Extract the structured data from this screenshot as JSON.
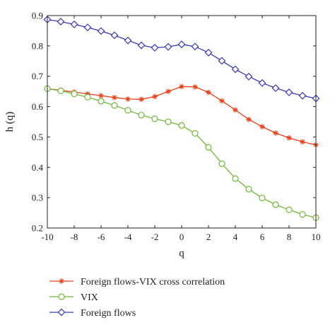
{
  "chart_data": {
    "type": "line",
    "xlabel": "q",
    "ylabel": "h (q)",
    "xlim": [
      -10,
      10
    ],
    "ylim": [
      0.2,
      0.9
    ],
    "x_ticks": [
      "-10",
      "-8",
      "-6",
      "-4",
      "-2",
      "0",
      "2",
      "4",
      "6",
      "8",
      "10"
    ],
    "y_ticks": [
      "0.2",
      "0.3",
      "0.4",
      "0.5",
      "0.6",
      "0.7",
      "0.8",
      "0.9"
    ],
    "grid": false,
    "legend_position": "below",
    "x": [
      -10,
      -9,
      -8,
      -7,
      -6,
      -5,
      -4,
      -3,
      -2,
      -1,
      0,
      1,
      2,
      3,
      4,
      5,
      6,
      7,
      8,
      9,
      10
    ],
    "series": [
      {
        "name": "Foreign flows-VIX cross correlation",
        "color": "#e8401c",
        "marker": "asterisk",
        "values": [
          0.659,
          0.654,
          0.648,
          0.642,
          0.636,
          0.63,
          0.625,
          0.624,
          0.633,
          0.65,
          0.666,
          0.665,
          0.647,
          0.619,
          0.589,
          0.558,
          0.534,
          0.513,
          0.497,
          0.484,
          0.474
        ]
      },
      {
        "name": "VIX",
        "color": "#72b83c",
        "marker": "circle",
        "values": [
          0.659,
          0.652,
          0.642,
          0.631,
          0.618,
          0.604,
          0.588,
          0.572,
          0.56,
          0.55,
          0.538,
          0.512,
          0.466,
          0.412,
          0.363,
          0.328,
          0.299,
          0.277,
          0.26,
          0.245,
          0.234
        ]
      },
      {
        "name": "Foreign flows",
        "color": "#3a3ab0",
        "marker": "diamond",
        "values": [
          0.887,
          0.88,
          0.871,
          0.861,
          0.849,
          0.835,
          0.818,
          0.802,
          0.794,
          0.797,
          0.805,
          0.798,
          0.778,
          0.751,
          0.723,
          0.699,
          0.678,
          0.661,
          0.647,
          0.636,
          0.627
        ]
      }
    ]
  }
}
